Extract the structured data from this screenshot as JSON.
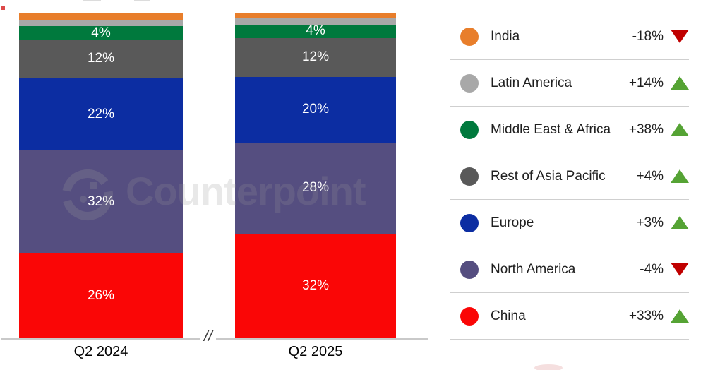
{
  "watermark": {
    "text": "Counterpoint"
  },
  "axis": {
    "break_symbol": "//"
  },
  "chart_data": {
    "type": "bar",
    "subtype": "100%-stacked-column",
    "categories": [
      "Q2 2024",
      "Q2 2025"
    ],
    "unit": "%",
    "ylim": [
      0,
      100
    ],
    "grid": false,
    "legend_position": "right",
    "series": [
      {
        "name": "India",
        "color": "#e87e2b",
        "values": [
          2,
          1.5
        ],
        "labels": [
          "",
          ""
        ]
      },
      {
        "name": "Latin America",
        "color": "#a8a8a8",
        "values": [
          2,
          2
        ],
        "labels": [
          "",
          ""
        ]
      },
      {
        "name": "Middle East & Africa",
        "color": "#00793d",
        "values": [
          4,
          4
        ],
        "labels": [
          "4%",
          "4%"
        ]
      },
      {
        "name": "Rest of Asia Pacific",
        "color": "#595959",
        "values": [
          12,
          12
        ],
        "labels": [
          "12%",
          "12%"
        ]
      },
      {
        "name": "Europe",
        "color": "#0c2da2",
        "values": [
          22,
          20
        ],
        "labels": [
          "22%",
          "20%"
        ]
      },
      {
        "name": "North America",
        "color": "#554e80",
        "values": [
          32,
          28
        ],
        "labels": [
          "32%",
          "28%"
        ]
      },
      {
        "name": "China",
        "color": "#fa0606",
        "values": [
          26,
          32
        ],
        "labels": [
          "26%",
          "32%"
        ]
      }
    ]
  },
  "legend": {
    "up_color": "#55a334",
    "down_color": "#c00000",
    "rows": [
      {
        "label": "India",
        "change": "-18%",
        "direction": "down"
      },
      {
        "label": "Latin America",
        "change": "+14%",
        "direction": "up"
      },
      {
        "label": "Middle East & Africa",
        "change": "+38%",
        "direction": "up"
      },
      {
        "label": "Rest of Asia Pacific",
        "change": "+4%",
        "direction": "up"
      },
      {
        "label": "Europe",
        "change": "+3%",
        "direction": "up"
      },
      {
        "label": "North America",
        "change": "-4%",
        "direction": "down"
      },
      {
        "label": "China",
        "change": "+33%",
        "direction": "up"
      }
    ]
  }
}
